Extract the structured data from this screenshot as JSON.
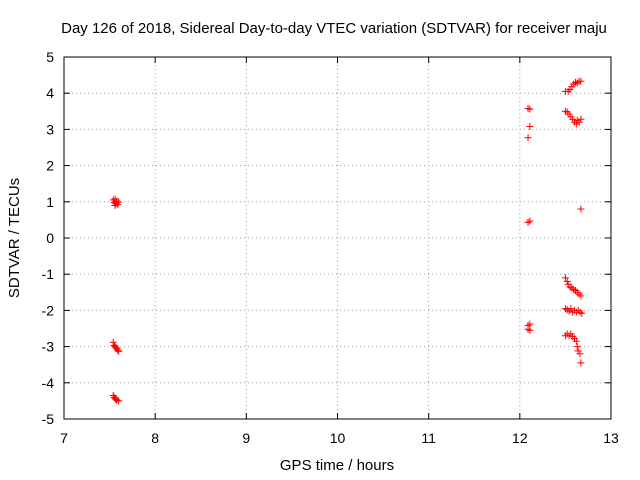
{
  "chart_data": {
    "type": "scatter",
    "title": "Day 126 of 2018, Sidereal Day-to-day VTEC variation (SDTVAR) for receiver maju",
    "xlabel": "GPS time / hours",
    "ylabel": "SDTVAR / TECUs",
    "xlim": [
      7,
      13
    ],
    "ylim": [
      -5,
      5
    ],
    "x_ticks": [
      "7",
      "8",
      "9",
      "10",
      "11",
      "12",
      "13"
    ],
    "y_ticks": [
      "-5",
      "-4",
      "-3",
      "-2",
      "-1",
      "0",
      "1",
      "2",
      "3",
      "4",
      "5"
    ],
    "grid": true,
    "marker": "+",
    "marker_color": "#ff0000",
    "points": [
      [
        7.54,
        1.05
      ],
      [
        7.55,
        0.98
      ],
      [
        7.56,
        1.08
      ],
      [
        7.57,
        0.95
      ],
      [
        7.58,
        1.02
      ],
      [
        7.59,
        0.92
      ],
      [
        7.6,
        0.99
      ],
      [
        7.56,
        0.9
      ],
      [
        7.54,
        -2.88
      ],
      [
        7.55,
        -2.97
      ],
      [
        7.56,
        -3.0
      ],
      [
        7.57,
        -3.03
      ],
      [
        7.58,
        -3.06
      ],
      [
        7.59,
        -3.1
      ],
      [
        7.6,
        -3.13
      ],
      [
        7.54,
        -4.35
      ],
      [
        7.55,
        -4.4
      ],
      [
        7.56,
        -4.43
      ],
      [
        7.57,
        -4.46
      ],
      [
        7.58,
        -4.48
      ],
      [
        7.6,
        -4.5
      ],
      [
        12.09,
        3.58
      ],
      [
        12.11,
        3.56
      ],
      [
        12.11,
        3.08
      ],
      [
        12.09,
        2.77
      ],
      [
        12.09,
        0.43
      ],
      [
        12.11,
        0.47
      ],
      [
        12.09,
        -2.42
      ],
      [
        12.11,
        -2.38
      ],
      [
        12.09,
        -2.52
      ],
      [
        12.11,
        -2.55
      ],
      [
        12.5,
        4.05
      ],
      [
        12.53,
        4.05
      ],
      [
        12.55,
        4.1
      ],
      [
        12.57,
        4.18
      ],
      [
        12.59,
        4.25
      ],
      [
        12.61,
        4.3
      ],
      [
        12.63,
        4.28
      ],
      [
        12.65,
        4.33
      ],
      [
        12.67,
        4.33
      ],
      [
        12.5,
        3.5
      ],
      [
        12.52,
        3.48
      ],
      [
        12.54,
        3.42
      ],
      [
        12.56,
        3.35
      ],
      [
        12.58,
        3.28
      ],
      [
        12.6,
        3.2
      ],
      [
        12.62,
        3.15
      ],
      [
        12.63,
        3.25
      ],
      [
        12.65,
        3.2
      ],
      [
        12.67,
        3.28
      ],
      [
        12.67,
        0.8
      ],
      [
        12.5,
        -1.1
      ],
      [
        12.52,
        -1.2
      ],
      [
        12.53,
        -1.28
      ],
      [
        12.55,
        -1.35
      ],
      [
        12.57,
        -1.38
      ],
      [
        12.59,
        -1.42
      ],
      [
        12.61,
        -1.45
      ],
      [
        12.63,
        -1.5
      ],
      [
        12.65,
        -1.55
      ],
      [
        12.67,
        -1.6
      ],
      [
        12.5,
        -1.95
      ],
      [
        12.52,
        -1.98
      ],
      [
        12.54,
        -2.02
      ],
      [
        12.56,
        -1.95
      ],
      [
        12.58,
        -2.05
      ],
      [
        12.6,
        -2.0
      ],
      [
        12.62,
        -2.05
      ],
      [
        12.64,
        -2.0
      ],
      [
        12.66,
        -2.05
      ],
      [
        12.68,
        -2.08
      ],
      [
        12.5,
        -2.7
      ],
      [
        12.52,
        -2.65
      ],
      [
        12.54,
        -2.7
      ],
      [
        12.56,
        -2.65
      ],
      [
        12.58,
        -2.72
      ],
      [
        12.6,
        -2.78
      ],
      [
        12.62,
        -2.85
      ],
      [
        12.63,
        -3.0
      ],
      [
        12.64,
        -3.12
      ],
      [
        12.66,
        -3.2
      ],
      [
        12.67,
        -3.45
      ]
    ]
  }
}
